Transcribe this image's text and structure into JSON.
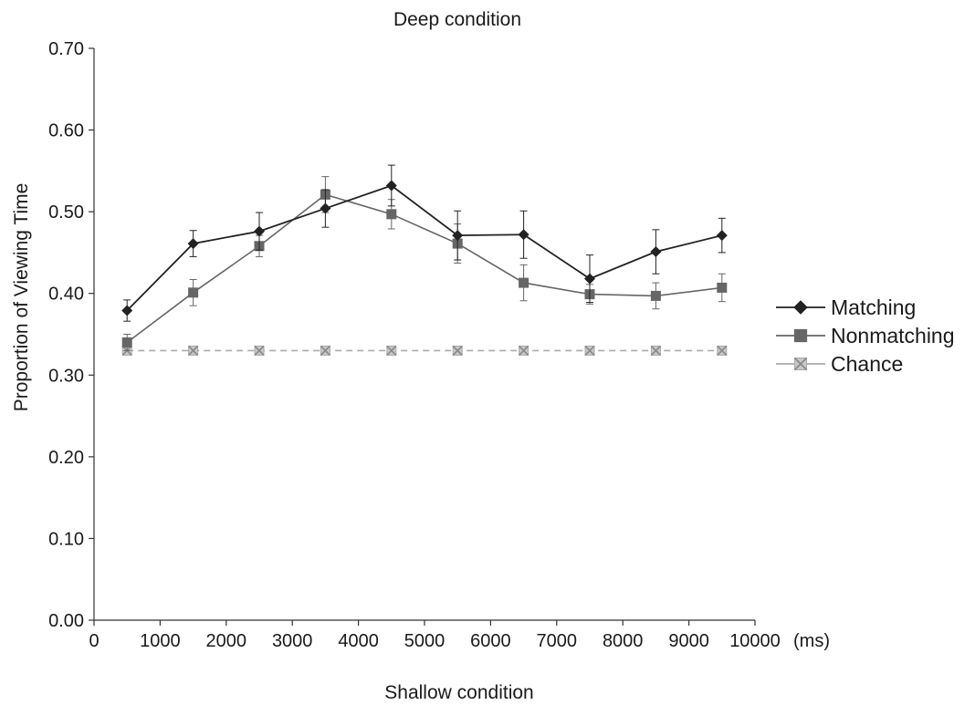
{
  "chart_data": {
    "type": "line",
    "title": "Deep condition",
    "xlabel": "Shallow condition",
    "ylabel": "Proportion of Viewing Time",
    "x_unit": "(ms)",
    "xlim": [
      0,
      10000
    ],
    "ylim": [
      0,
      0.7
    ],
    "x_ticks": [
      "0",
      "1000",
      "2000",
      "3000",
      "4000",
      "5000",
      "6000",
      "7000",
      "8000",
      "9000",
      "10000"
    ],
    "y_ticks": [
      "0.00",
      "0.10",
      "0.20",
      "0.30",
      "0.40",
      "0.50",
      "0.60",
      "0.70"
    ],
    "x": [
      500,
      1500,
      2500,
      3500,
      4500,
      5500,
      6500,
      7500,
      8500,
      9500
    ],
    "grid": false,
    "legend_position": "right",
    "series": [
      {
        "name": "Matching",
        "values": [
          0.379,
          0.461,
          0.476,
          0.504,
          0.532,
          0.471,
          0.472,
          0.418,
          0.451,
          0.471
        ],
        "errors": [
          0.013,
          0.016,
          0.023,
          0.023,
          0.025,
          0.03,
          0.029,
          0.029,
          0.027,
          0.021
        ],
        "marker": "diamond",
        "color": "#222222"
      },
      {
        "name": "Nonmatching",
        "values": [
          0.34,
          0.401,
          0.458,
          0.521,
          0.497,
          0.461,
          0.413,
          0.399,
          0.397,
          0.407
        ],
        "errors": [
          0.01,
          0.016,
          0.013,
          0.022,
          0.018,
          0.024,
          0.022,
          0.012,
          0.016,
          0.017
        ],
        "marker": "square",
        "color": "#666666"
      },
      {
        "name": "Chance",
        "values": [
          0.33,
          0.33,
          0.33,
          0.33,
          0.33,
          0.33,
          0.33,
          0.33,
          0.33,
          0.33
        ],
        "marker": "x-square",
        "dashed": true,
        "color": "#aaaaaa"
      }
    ]
  }
}
